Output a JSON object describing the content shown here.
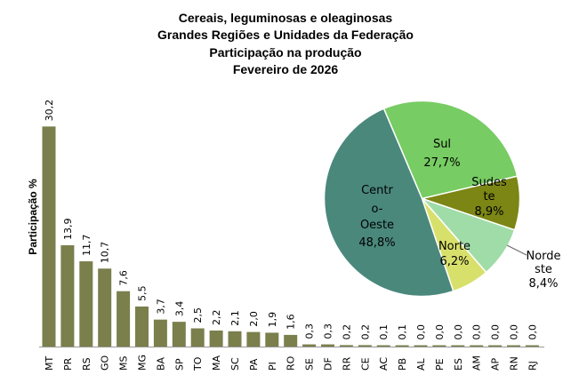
{
  "chart_data": [
    {
      "type": "bar",
      "title": [
        "Cereais, leguminosas e oleaginosas",
        "Grandes Regiões e Unidades da Federação",
        "Participação na produção",
        "Fevereiro de 2026"
      ],
      "ylabel": "Participação %",
      "xlabel": "",
      "categories": [
        "MT",
        "PR",
        "RS",
        "GO",
        "MS",
        "MG",
        "BA",
        "SP",
        "TO",
        "MA",
        "SC",
        "PA",
        "PI",
        "RO",
        "SE",
        "DF",
        "RR",
        "CE",
        "AC",
        "PB",
        "AL",
        "PE",
        "ES",
        "AM",
        "AP",
        "RN",
        "RJ"
      ],
      "values": [
        30.2,
        13.9,
        11.7,
        10.7,
        7.6,
        5.5,
        3.7,
        3.4,
        2.5,
        2.2,
        2.1,
        2.0,
        1.9,
        1.6,
        0.3,
        0.3,
        0.2,
        0.2,
        0.1,
        0.1,
        0.0,
        0.0,
        0.0,
        0.0,
        0.0,
        0.0,
        0.0
      ],
      "data_labels": [
        "30,2",
        "13,9",
        "11,7",
        "10,7",
        "7,6",
        "5,5",
        "3,7",
        "3,4",
        "2,5",
        "2,2",
        "2,1",
        "2,0",
        "1,9",
        "1,6",
        "0,3",
        "0,3",
        "0,2",
        "0,2",
        "0,1",
        "0,1",
        "0,0",
        "0,0",
        "0,0",
        "0,0",
        "0,0",
        "0,0",
        "0,0"
      ],
      "color": "#7a7f4c",
      "grid": false
    },
    {
      "type": "pie",
      "slices": [
        {
          "name": "Sul",
          "value": 27.7,
          "label": "27,7%",
          "color": "#77cc63"
        },
        {
          "name": "Sudeste",
          "value": 8.9,
          "label": "8,9%",
          "color": "#7b8614"
        },
        {
          "name": "Nordeste",
          "value": 8.4,
          "label": "8,4%",
          "color": "#a0dca8"
        },
        {
          "name": "Norte",
          "value": 6.2,
          "label": "6,2%",
          "color": "#d8e06c"
        },
        {
          "name": "Centro-Oeste",
          "value": 48.8,
          "label": "48,8%",
          "color": "#4a887c"
        }
      ]
    }
  ]
}
